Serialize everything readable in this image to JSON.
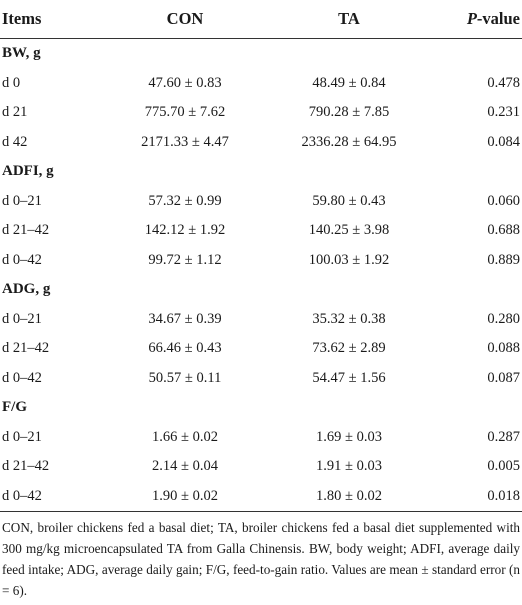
{
  "headers": {
    "items": "Items",
    "con": "CON",
    "ta": "TA",
    "p_italic": "P",
    "p_rest": "-value"
  },
  "sections": [
    {
      "title": "BW, g",
      "rows": [
        {
          "label": "d 0",
          "con": "47.60 ± 0.83",
          "ta": "48.49 ± 0.84",
          "p": "0.478"
        },
        {
          "label": "d 21",
          "con": "775.70 ± 7.62",
          "ta": "790.28 ± 7.85",
          "p": "0.231"
        },
        {
          "label": "d 42",
          "con": "2171.33 ± 4.47",
          "ta": "2336.28 ± 64.95",
          "p": "0.084"
        }
      ]
    },
    {
      "title": "ADFI, g",
      "rows": [
        {
          "label": "d 0–21",
          "con": "57.32 ± 0.99",
          "ta": "59.80 ± 0.43",
          "p": "0.060"
        },
        {
          "label": "d 21–42",
          "con": "142.12 ± 1.92",
          "ta": "140.25 ± 3.98",
          "p": "0.688"
        },
        {
          "label": "d 0–42",
          "con": "99.72 ± 1.12",
          "ta": "100.03 ± 1.92",
          "p": "0.889"
        }
      ]
    },
    {
      "title": "ADG, g",
      "rows": [
        {
          "label": "d 0–21",
          "con": "34.67 ± 0.39",
          "ta": "35.32 ± 0.38",
          "p": "0.280"
        },
        {
          "label": "d 21–42",
          "con": "66.46 ± 0.43",
          "ta": "73.62 ± 2.89",
          "p": "0.088"
        },
        {
          "label": "d 0–42",
          "con": "50.57 ± 0.11",
          "ta": "54.47 ± 1.56",
          "p": "0.087"
        }
      ]
    },
    {
      "title": "F/G",
      "rows": [
        {
          "label": "d 0–21",
          "con": "1.66 ± 0.02",
          "ta": "1.69 ± 0.03",
          "p": "0.287"
        },
        {
          "label": "d 21–42",
          "con": "2.14 ± 0.04",
          "ta": "1.91 ± 0.03",
          "p": "0.005"
        },
        {
          "label": "d 0–42",
          "con": "1.90 ± 0.02",
          "ta": "1.80 ± 0.02",
          "p": "0.018"
        }
      ]
    }
  ],
  "footnote": "CON, broiler chickens fed a basal diet; TA, broiler chickens fed a basal diet supplemented with 300 mg/kg microencapsulated TA from Galla Chinensis. BW, body weight; ADFI, average daily feed intake; ADG, average daily gain; F/G, feed-to-gain ratio. Values are mean ± standard error (n = 6)."
}
